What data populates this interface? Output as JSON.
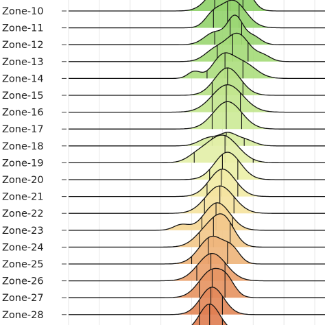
{
  "chart_data": {
    "type": "ridgeline",
    "x_axis": {
      "label": "",
      "gridlines": true
    },
    "y_axis": {
      "label": "",
      "categories": [
        "Zone-10",
        "Zone-11",
        "Zone-12",
        "Zone-13",
        "Zone-14",
        "Zone-15",
        "Zone-16",
        "Zone-17",
        "Zone-18",
        "Zone-19",
        "Zone-20",
        "Zone-21",
        "Zone-22",
        "Zone-23",
        "Zone-24",
        "Zone-25",
        "Zone-26",
        "Zone-27",
        "Zone-28"
      ]
    },
    "fill_colors": [
      "#8fd16a",
      "#95d46f",
      "#9cd774",
      "#a5db79",
      "#aede80",
      "#b8e287",
      "#c3e68f",
      "#cdea98",
      "#d8eda1",
      "#e3efa8",
      "#ecf0a8",
      "#f2eca6",
      "#f5e39f",
      "#f5d796",
      "#f2c88b",
      "#efb57c",
      "#eba36f",
      "#e69563",
      "#e3895a"
    ],
    "densities": [
      {
        "zone": "Zone-10",
        "peaks": [
          [
            0.6,
            0.05,
            1.0
          ],
          [
            0.68,
            0.035,
            0.75
          ]
        ],
        "quantile_ticks": [
          0.57,
          0.63,
          0.68
        ]
      },
      {
        "zone": "Zone-11",
        "peaks": [
          [
            0.64,
            0.05,
            1.0
          ],
          [
            0.56,
            0.03,
            0.35
          ]
        ],
        "quantile_ticks": [
          0.565,
          0.62,
          0.665
        ]
      },
      {
        "zone": "Zone-12",
        "peaks": [
          [
            0.65,
            0.03,
            1.0
          ],
          [
            0.57,
            0.04,
            0.45
          ],
          [
            0.72,
            0.03,
            0.3
          ]
        ],
        "quantile_ticks": [
          0.57,
          0.63,
          0.675
        ]
      },
      {
        "zone": "Zone-13",
        "peaks": [
          [
            0.66,
            0.045,
            1.0
          ],
          [
            0.57,
            0.04,
            0.4
          ],
          [
            0.76,
            0.03,
            0.2
          ]
        ],
        "quantile_ticks": [
          0.58,
          0.64,
          0.7
        ]
      },
      {
        "zone": "Zone-14",
        "peaks": [
          [
            0.6,
            0.04,
            0.75
          ],
          [
            0.49,
            0.025,
            0.25
          ],
          [
            0.68,
            0.05,
            0.55
          ]
        ],
        "quantile_ticks": [
          0.54,
          0.61,
          0.68
        ]
      },
      {
        "zone": "Zone-15",
        "peaks": [
          [
            0.62,
            0.05,
            1.0
          ]
        ],
        "quantile_ticks": [
          0.56,
          0.62,
          0.68
        ]
      },
      {
        "zone": "Zone-16",
        "peaks": [
          [
            0.62,
            0.06,
            1.0
          ]
        ],
        "quantile_ticks": [
          0.56,
          0.615,
          0.67
        ]
      },
      {
        "zone": "Zone-17",
        "peaks": [
          [
            0.62,
            0.055,
            1.0
          ]
        ],
        "quantile_ticks": [
          0.56,
          0.615,
          0.675
        ]
      },
      {
        "zone": "Zone-18",
        "peaks": [
          [
            0.62,
            0.03,
            0.35
          ],
          [
            0.55,
            0.04,
            0.3
          ],
          [
            0.68,
            0.04,
            0.25
          ]
        ],
        "quantile_ticks": [
          0.56,
          0.615,
          0.685
        ]
      },
      {
        "zone": "Zone-19",
        "peaks": [
          [
            0.6,
            0.06,
            1.0
          ],
          [
            0.5,
            0.04,
            0.2
          ]
        ],
        "quantile_ticks": [
          0.49,
          0.61,
          0.72
        ]
      },
      {
        "zone": "Zone-20",
        "peaks": [
          [
            0.62,
            0.05,
            1.0
          ]
        ],
        "quantile_ticks": [
          0.55,
          0.6,
          0.66
        ]
      },
      {
        "zone": "Zone-21",
        "peaks": [
          [
            0.6,
            0.05,
            1.0
          ]
        ],
        "quantile_ticks": [
          0.54,
          0.595,
          0.66
        ]
      },
      {
        "zone": "Zone-22",
        "peaks": [
          [
            0.59,
            0.055,
            1.0
          ]
        ],
        "quantile_ticks": [
          0.53,
          0.59,
          0.645
        ]
      },
      {
        "zone": "Zone-23",
        "peaks": [
          [
            0.58,
            0.05,
            1.0
          ],
          [
            0.44,
            0.03,
            0.2
          ]
        ],
        "quantile_ticks": [
          0.52,
          0.575,
          0.64
        ]
      },
      {
        "zone": "Zone-24",
        "peaks": [
          [
            0.55,
            0.05,
            0.7
          ],
          [
            0.61,
            0.04,
            0.8
          ]
        ],
        "quantile_ticks": [
          0.51,
          0.565,
          0.63
        ]
      },
      {
        "zone": "Zone-25",
        "peaks": [
          [
            0.56,
            0.05,
            1.0
          ],
          [
            0.64,
            0.03,
            0.4
          ]
        ],
        "quantile_ticks": [
          0.48,
          0.545,
          0.62
        ]
      },
      {
        "zone": "Zone-26",
        "peaks": [
          [
            0.56,
            0.055,
            1.0
          ]
        ],
        "quantile_ticks": [
          0.5,
          0.555,
          0.61
        ]
      },
      {
        "zone": "Zone-27",
        "peaks": [
          [
            0.56,
            0.05,
            1.0
          ],
          [
            0.62,
            0.03,
            0.35
          ]
        ],
        "quantile_ticks": [
          0.51,
          0.56,
          0.61
        ]
      },
      {
        "zone": "Zone-28",
        "peaks": [
          [
            0.56,
            0.045,
            1.0
          ]
        ],
        "quantile_ticks": [
          0.51,
          0.555,
          0.6
        ]
      }
    ]
  }
}
